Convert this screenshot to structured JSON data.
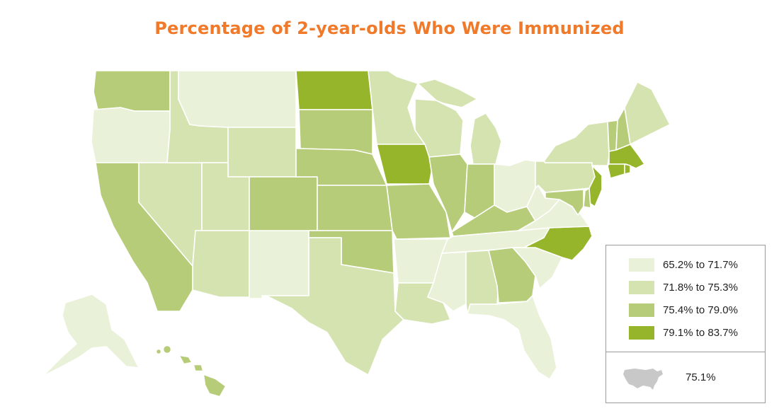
{
  "title": "Percentage of 2-year-olds Who Were Immunized",
  "colors": {
    "c1": "#e9f1d8",
    "c2": "#d4e3b0",
    "c3": "#b6cc78",
    "c4": "#96b52a",
    "national_icon": "#c8c8c8"
  },
  "legend": {
    "items": [
      {
        "label": "65.2% to 71.7%",
        "color_key": "c1"
      },
      {
        "label": "71.8% to 75.3%",
        "color_key": "c2"
      },
      {
        "label": "75.4% to 79.0%",
        "color_key": "c3"
      },
      {
        "label": "79.1% to 83.7%",
        "color_key": "c4"
      }
    ],
    "national_value": "75.1%",
    "national_icon": "us-map-icon"
  },
  "states": {
    "WA": "c3",
    "OR": "c1",
    "CA": "c3",
    "NV": "c2",
    "ID": "c2",
    "MT": "c1",
    "WY": "c2",
    "UT": "c2",
    "AZ": "c2",
    "NM": "c1",
    "CO": "c3",
    "ND": "c4",
    "SD": "c3",
    "NE": "c3",
    "KS": "c3",
    "OK": "c3",
    "TX": "c2",
    "MN": "c2",
    "IA": "c4",
    "MO": "c3",
    "AR": "c1",
    "LA": "c2",
    "WI": "c2",
    "IL": "c3",
    "MI": "c2",
    "IN": "c3",
    "OH": "c1",
    "KY": "c3",
    "TN": "c1",
    "MS": "c1",
    "AL": "c2",
    "GA": "c3",
    "FL": "c1",
    "SC": "c1",
    "NC": "c4",
    "VA": "c1",
    "WV": "c1",
    "PA": "c2",
    "NY": "c2",
    "VT": "c3",
    "NH": "c3",
    "ME": "c2",
    "MA": "c4",
    "CT": "c4",
    "RI": "c4",
    "NJ": "c4",
    "DE": "c3",
    "MD": "c3",
    "AK": "c1",
    "HI": "c3"
  }
}
